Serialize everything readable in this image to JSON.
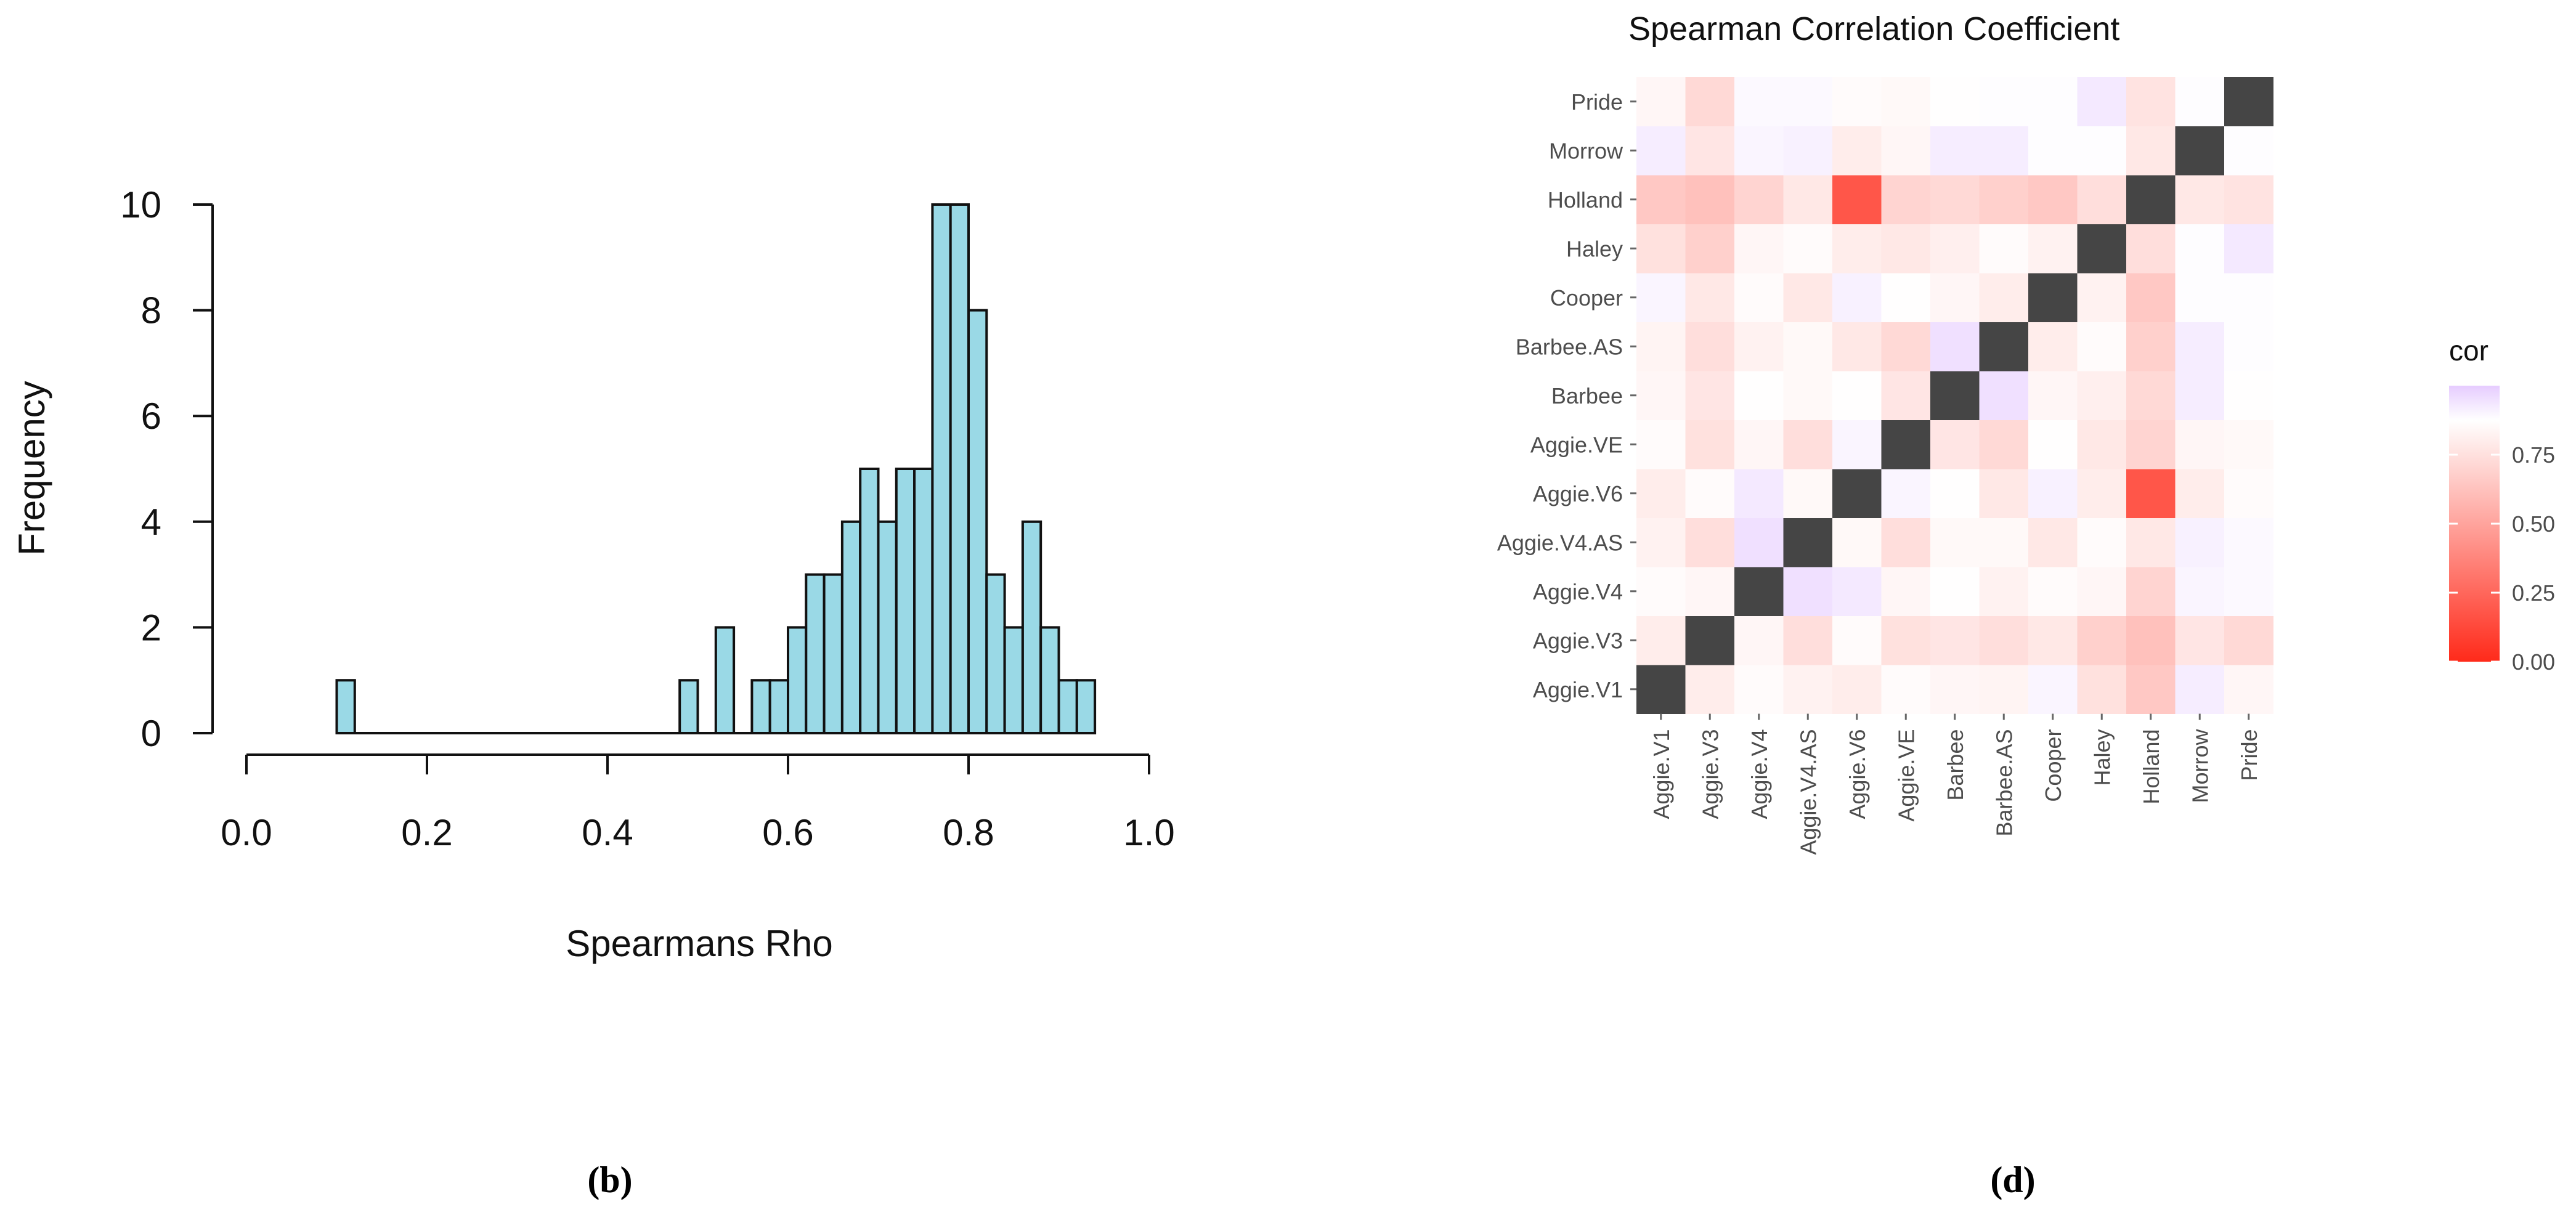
{
  "chart_data": [
    {
      "type": "bar",
      "panel_label": "b",
      "xlabel": "Spearmans Rho",
      "ylabel": "Frequency",
      "xlim": [
        0.0,
        1.0
      ],
      "ylim": [
        0,
        10
      ],
      "xticks": [
        "0.0",
        "0.2",
        "0.4",
        "0.6",
        "0.8",
        "1.0"
      ],
      "yticks": [
        "0",
        "2",
        "4",
        "6",
        "8",
        "10"
      ],
      "bar_color": "#9ad9e6",
      "bins": [
        {
          "x0": 0.1,
          "x1": 0.12,
          "count": 1
        },
        {
          "x0": 0.12,
          "x1": 0.48,
          "count": 0
        },
        {
          "x0": 0.48,
          "x1": 0.5,
          "count": 1
        },
        {
          "x0": 0.5,
          "x1": 0.52,
          "count": 0
        },
        {
          "x0": 0.52,
          "x1": 0.54,
          "count": 2
        },
        {
          "x0": 0.54,
          "x1": 0.56,
          "count": 0
        },
        {
          "x0": 0.56,
          "x1": 0.58,
          "count": 1
        },
        {
          "x0": 0.58,
          "x1": 0.6,
          "count": 1
        },
        {
          "x0": 0.6,
          "x1": 0.62,
          "count": 2
        },
        {
          "x0": 0.62,
          "x1": 0.64,
          "count": 3
        },
        {
          "x0": 0.64,
          "x1": 0.66,
          "count": 3
        },
        {
          "x0": 0.66,
          "x1": 0.68,
          "count": 4
        },
        {
          "x0": 0.68,
          "x1": 0.7,
          "count": 5
        },
        {
          "x0": 0.7,
          "x1": 0.72,
          "count": 4
        },
        {
          "x0": 0.72,
          "x1": 0.74,
          "count": 5
        },
        {
          "x0": 0.74,
          "x1": 0.76,
          "count": 5
        },
        {
          "x0": 0.76,
          "x1": 0.78,
          "count": 10
        },
        {
          "x0": 0.78,
          "x1": 0.8,
          "count": 10
        },
        {
          "x0": 0.8,
          "x1": 0.82,
          "count": 8
        },
        {
          "x0": 0.82,
          "x1": 0.84,
          "count": 3
        },
        {
          "x0": 0.84,
          "x1": 0.86,
          "count": 2
        },
        {
          "x0": 0.86,
          "x1": 0.88,
          "count": 4
        },
        {
          "x0": 0.88,
          "x1": 0.9,
          "count": 2
        },
        {
          "x0": 0.9,
          "x1": 0.92,
          "count": 1
        },
        {
          "x0": 0.92,
          "x1": 0.94,
          "count": 1
        }
      ]
    },
    {
      "type": "heatmap",
      "panel_label": "d",
      "title": "Spearman Correlation Coefficient",
      "labels": [
        "Aggie.V1",
        "Aggie.V3",
        "Aggie.V4",
        "Aggie.V4.AS",
        "Aggie.V6",
        "Aggie.VE",
        "Barbee",
        "Barbee.AS",
        "Cooper",
        "Haley",
        "Holland",
        "Morrow",
        "Pride"
      ],
      "legend_title": "cor",
      "legend_ticks": [
        "0.00",
        "0.25",
        "0.50",
        "0.75"
      ],
      "scale": {
        "low": 0.0,
        "mid": 0.875,
        "high": 1.0,
        "low_color": "#ff2a1a",
        "mid_color": "#ffffff",
        "high_color": "#e6ccff"
      },
      "diagonal_color": "#454545",
      "matrix": [
        [
          1.0,
          0.8,
          0.86,
          0.82,
          0.8,
          0.86,
          0.84,
          0.83,
          0.9,
          0.75,
          0.65,
          0.92,
          0.84
        ],
        [
          0.8,
          1.0,
          0.84,
          0.74,
          0.86,
          0.75,
          0.77,
          0.74,
          0.78,
          0.68,
          0.62,
          0.77,
          0.72
        ],
        [
          0.86,
          0.84,
          1.0,
          0.95,
          0.93,
          0.84,
          0.87,
          0.82,
          0.86,
          0.84,
          0.7,
          0.9,
          0.89
        ],
        [
          0.82,
          0.74,
          0.95,
          1.0,
          0.85,
          0.74,
          0.85,
          0.85,
          0.78,
          0.86,
          0.78,
          0.91,
          0.89
        ],
        [
          0.8,
          0.86,
          0.93,
          0.85,
          1.0,
          0.9,
          0.87,
          0.78,
          0.91,
          0.8,
          0.18,
          0.8,
          0.86
        ],
        [
          0.86,
          0.75,
          0.84,
          0.74,
          0.9,
          1.0,
          0.77,
          0.72,
          0.87,
          0.78,
          0.7,
          0.84,
          0.85
        ],
        [
          0.84,
          0.77,
          0.87,
          0.85,
          0.87,
          0.77,
          1.0,
          0.95,
          0.84,
          0.81,
          0.72,
          0.92,
          0.87
        ],
        [
          0.83,
          0.74,
          0.82,
          0.85,
          0.78,
          0.72,
          0.95,
          1.0,
          0.8,
          0.86,
          0.68,
          0.92,
          0.88
        ],
        [
          0.9,
          0.78,
          0.86,
          0.78,
          0.91,
          0.87,
          0.84,
          0.8,
          1.0,
          0.82,
          0.65,
          0.88,
          0.88
        ],
        [
          0.75,
          0.68,
          0.84,
          0.86,
          0.8,
          0.78,
          0.81,
          0.86,
          0.82,
          1.0,
          0.74,
          0.88,
          0.93
        ],
        [
          0.65,
          0.62,
          0.7,
          0.78,
          0.18,
          0.7,
          0.72,
          0.68,
          0.65,
          0.74,
          1.0,
          0.78,
          0.76
        ],
        [
          0.92,
          0.77,
          0.9,
          0.91,
          0.8,
          0.84,
          0.92,
          0.92,
          0.88,
          0.88,
          0.78,
          1.0,
          0.88
        ],
        [
          0.84,
          0.72,
          0.89,
          0.89,
          0.86,
          0.85,
          0.87,
          0.88,
          0.88,
          0.93,
          0.76,
          0.88,
          1.0
        ]
      ]
    }
  ]
}
